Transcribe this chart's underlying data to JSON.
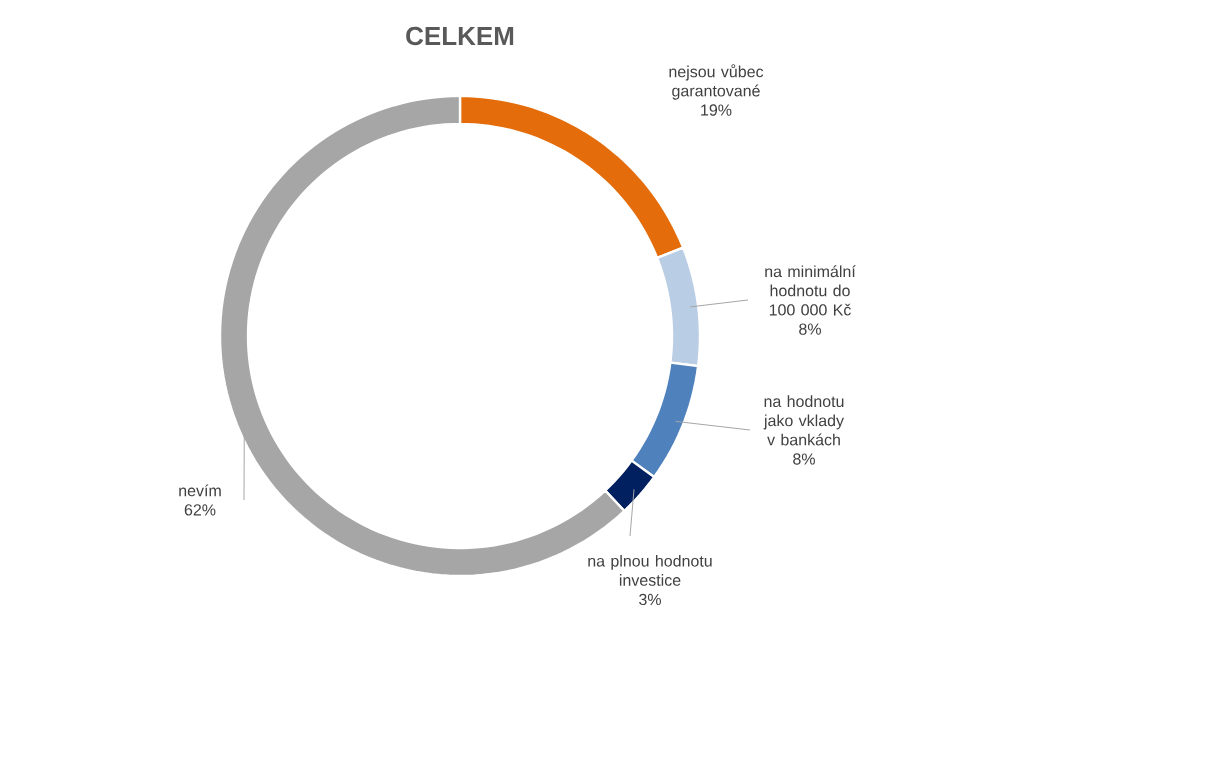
{
  "chart_data": {
    "type": "donut",
    "title": "CELKEM",
    "categories": [
      "nejsou vůbec garantované",
      "na minimální hodnotu do 100 000 Kč",
      "na hodnotu jako vklady v bankách",
      "na plnou hodnotu investice",
      "nevím"
    ],
    "values": [
      19,
      8,
      8,
      3,
      62
    ],
    "value_labels": [
      "19%",
      "8%",
      "8%",
      "3%",
      "62%"
    ],
    "colors": [
      "#e46c0a",
      "#b9cde5",
      "#4f81bd",
      "#002060",
      "#a6a6a6"
    ]
  }
}
